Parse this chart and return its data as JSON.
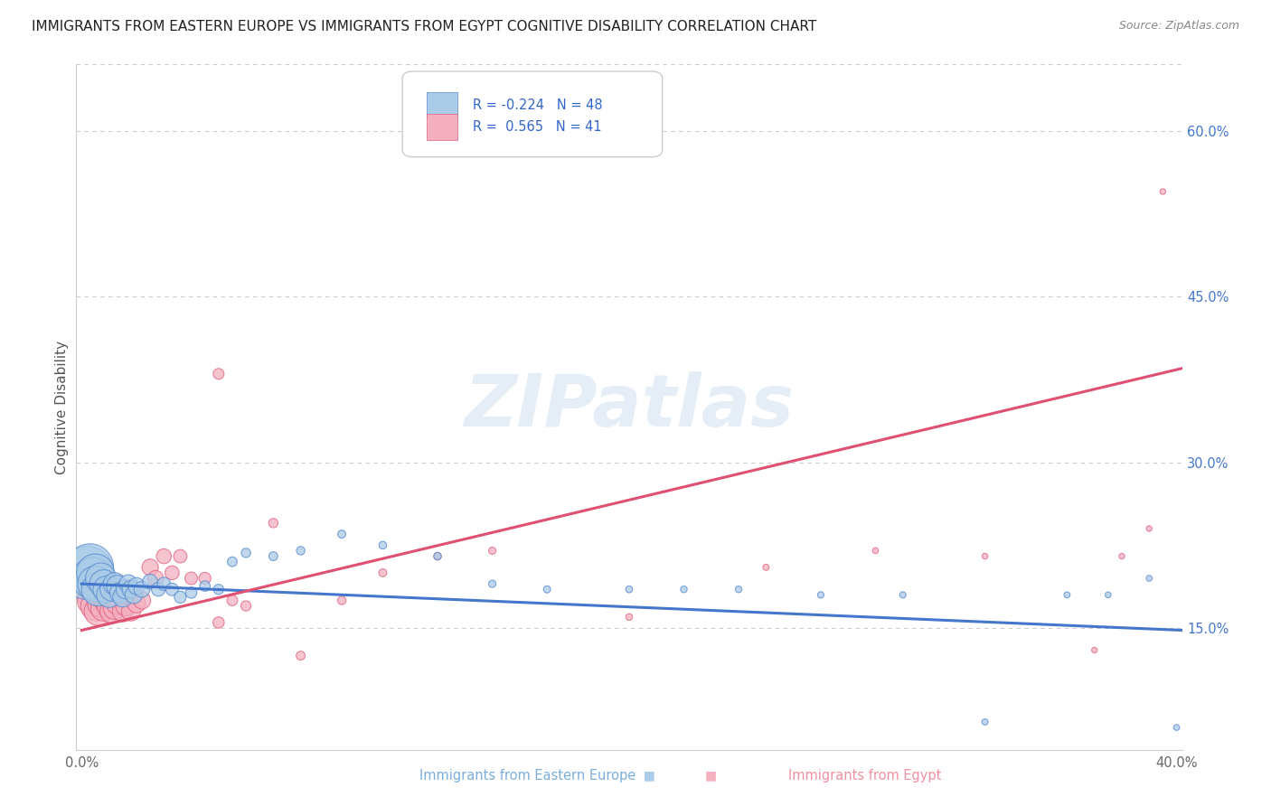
{
  "title": "IMMIGRANTS FROM EASTERN EUROPE VS IMMIGRANTS FROM EGYPT COGNITIVE DISABILITY CORRELATION CHART",
  "source": "Source: ZipAtlas.com",
  "ylabel": "Cognitive Disability",
  "watermark": "ZIPatlas",
  "xlim": [
    -0.002,
    0.402
  ],
  "ylim": [
    0.04,
    0.66
  ],
  "xtick_vals": [
    0.0,
    0.1,
    0.2,
    0.3,
    0.4
  ],
  "xtick_labels": [
    "0.0%",
    "",
    "",
    "",
    "40.0%"
  ],
  "ytick_right_vals": [
    0.15,
    0.3,
    0.45,
    0.6
  ],
  "ytick_right_labels": [
    "15.0%",
    "30.0%",
    "45.0%",
    "60.0%"
  ],
  "blue_color": "#aacce8",
  "pink_color": "#f4b0c0",
  "blue_edge_color": "#5588cc",
  "pink_edge_color": "#e06080",
  "blue_line_color": "#4477cc",
  "pink_line_color": "#e05070",
  "blue_line_x": [
    0.0,
    0.402
  ],
  "blue_line_y": [
    0.19,
    0.148
  ],
  "pink_line_x": [
    0.0,
    0.402
  ],
  "pink_line_y": [
    0.148,
    0.385
  ],
  "blue_scatter_x": [
    0.002,
    0.003,
    0.004,
    0.005,
    0.005,
    0.006,
    0.007,
    0.008,
    0.009,
    0.01,
    0.011,
    0.012,
    0.013,
    0.014,
    0.015,
    0.016,
    0.017,
    0.018,
    0.019,
    0.02,
    0.022,
    0.025,
    0.028,
    0.03,
    0.033,
    0.036,
    0.04,
    0.045,
    0.05,
    0.055,
    0.06,
    0.07,
    0.08,
    0.095,
    0.11,
    0.13,
    0.15,
    0.17,
    0.2,
    0.22,
    0.24,
    0.27,
    0.3,
    0.33,
    0.36,
    0.375,
    0.39,
    0.4
  ],
  "blue_scatter_y": [
    0.2,
    0.205,
    0.195,
    0.2,
    0.19,
    0.185,
    0.195,
    0.19,
    0.185,
    0.18,
    0.185,
    0.19,
    0.188,
    0.182,
    0.178,
    0.185,
    0.19,
    0.185,
    0.18,
    0.188,
    0.185,
    0.192,
    0.185,
    0.19,
    0.185,
    0.178,
    0.182,
    0.188,
    0.185,
    0.21,
    0.218,
    0.215,
    0.22,
    0.235,
    0.225,
    0.215,
    0.19,
    0.185,
    0.185,
    0.185,
    0.185,
    0.18,
    0.18,
    0.065,
    0.18,
    0.18,
    0.195,
    0.06
  ],
  "blue_scatter_sizes": [
    1800,
    1400,
    1100,
    900,
    800,
    700,
    600,
    500,
    450,
    400,
    350,
    320,
    290,
    270,
    250,
    230,
    210,
    200,
    190,
    180,
    160,
    140,
    120,
    110,
    100,
    90,
    80,
    70,
    65,
    60,
    55,
    50,
    45,
    40,
    38,
    36,
    34,
    32,
    30,
    28,
    27,
    26,
    25,
    24,
    23,
    22,
    22,
    22
  ],
  "pink_scatter_x": [
    0.003,
    0.004,
    0.005,
    0.006,
    0.007,
    0.008,
    0.009,
    0.01,
    0.011,
    0.012,
    0.013,
    0.015,
    0.016,
    0.018,
    0.02,
    0.022,
    0.025,
    0.027,
    0.03,
    0.033,
    0.036,
    0.04,
    0.045,
    0.05,
    0.055,
    0.06,
    0.07,
    0.08,
    0.095,
    0.11,
    0.13,
    0.15,
    0.2,
    0.25,
    0.29,
    0.33,
    0.37,
    0.38,
    0.39,
    0.395,
    0.05
  ],
  "pink_scatter_y": [
    0.185,
    0.175,
    0.17,
    0.165,
    0.172,
    0.168,
    0.175,
    0.17,
    0.165,
    0.168,
    0.172,
    0.165,
    0.17,
    0.165,
    0.172,
    0.175,
    0.205,
    0.195,
    0.215,
    0.2,
    0.215,
    0.195,
    0.195,
    0.155,
    0.175,
    0.17,
    0.245,
    0.125,
    0.175,
    0.2,
    0.215,
    0.22,
    0.16,
    0.205,
    0.22,
    0.215,
    0.13,
    0.215,
    0.24,
    0.545,
    0.38
  ],
  "pink_scatter_sizes": [
    700,
    600,
    550,
    500,
    450,
    420,
    400,
    370,
    350,
    320,
    300,
    270,
    250,
    230,
    210,
    190,
    170,
    155,
    140,
    125,
    112,
    100,
    90,
    80,
    72,
    65,
    55,
    50,
    45,
    40,
    36,
    33,
    28,
    24,
    22,
    21,
    20,
    20,
    20,
    20,
    75
  ],
  "background_color": "#ffffff",
  "grid_color": "#cccccc",
  "title_fontsize": 11,
  "ylabel_fontsize": 11,
  "tick_fontsize": 10.5
}
